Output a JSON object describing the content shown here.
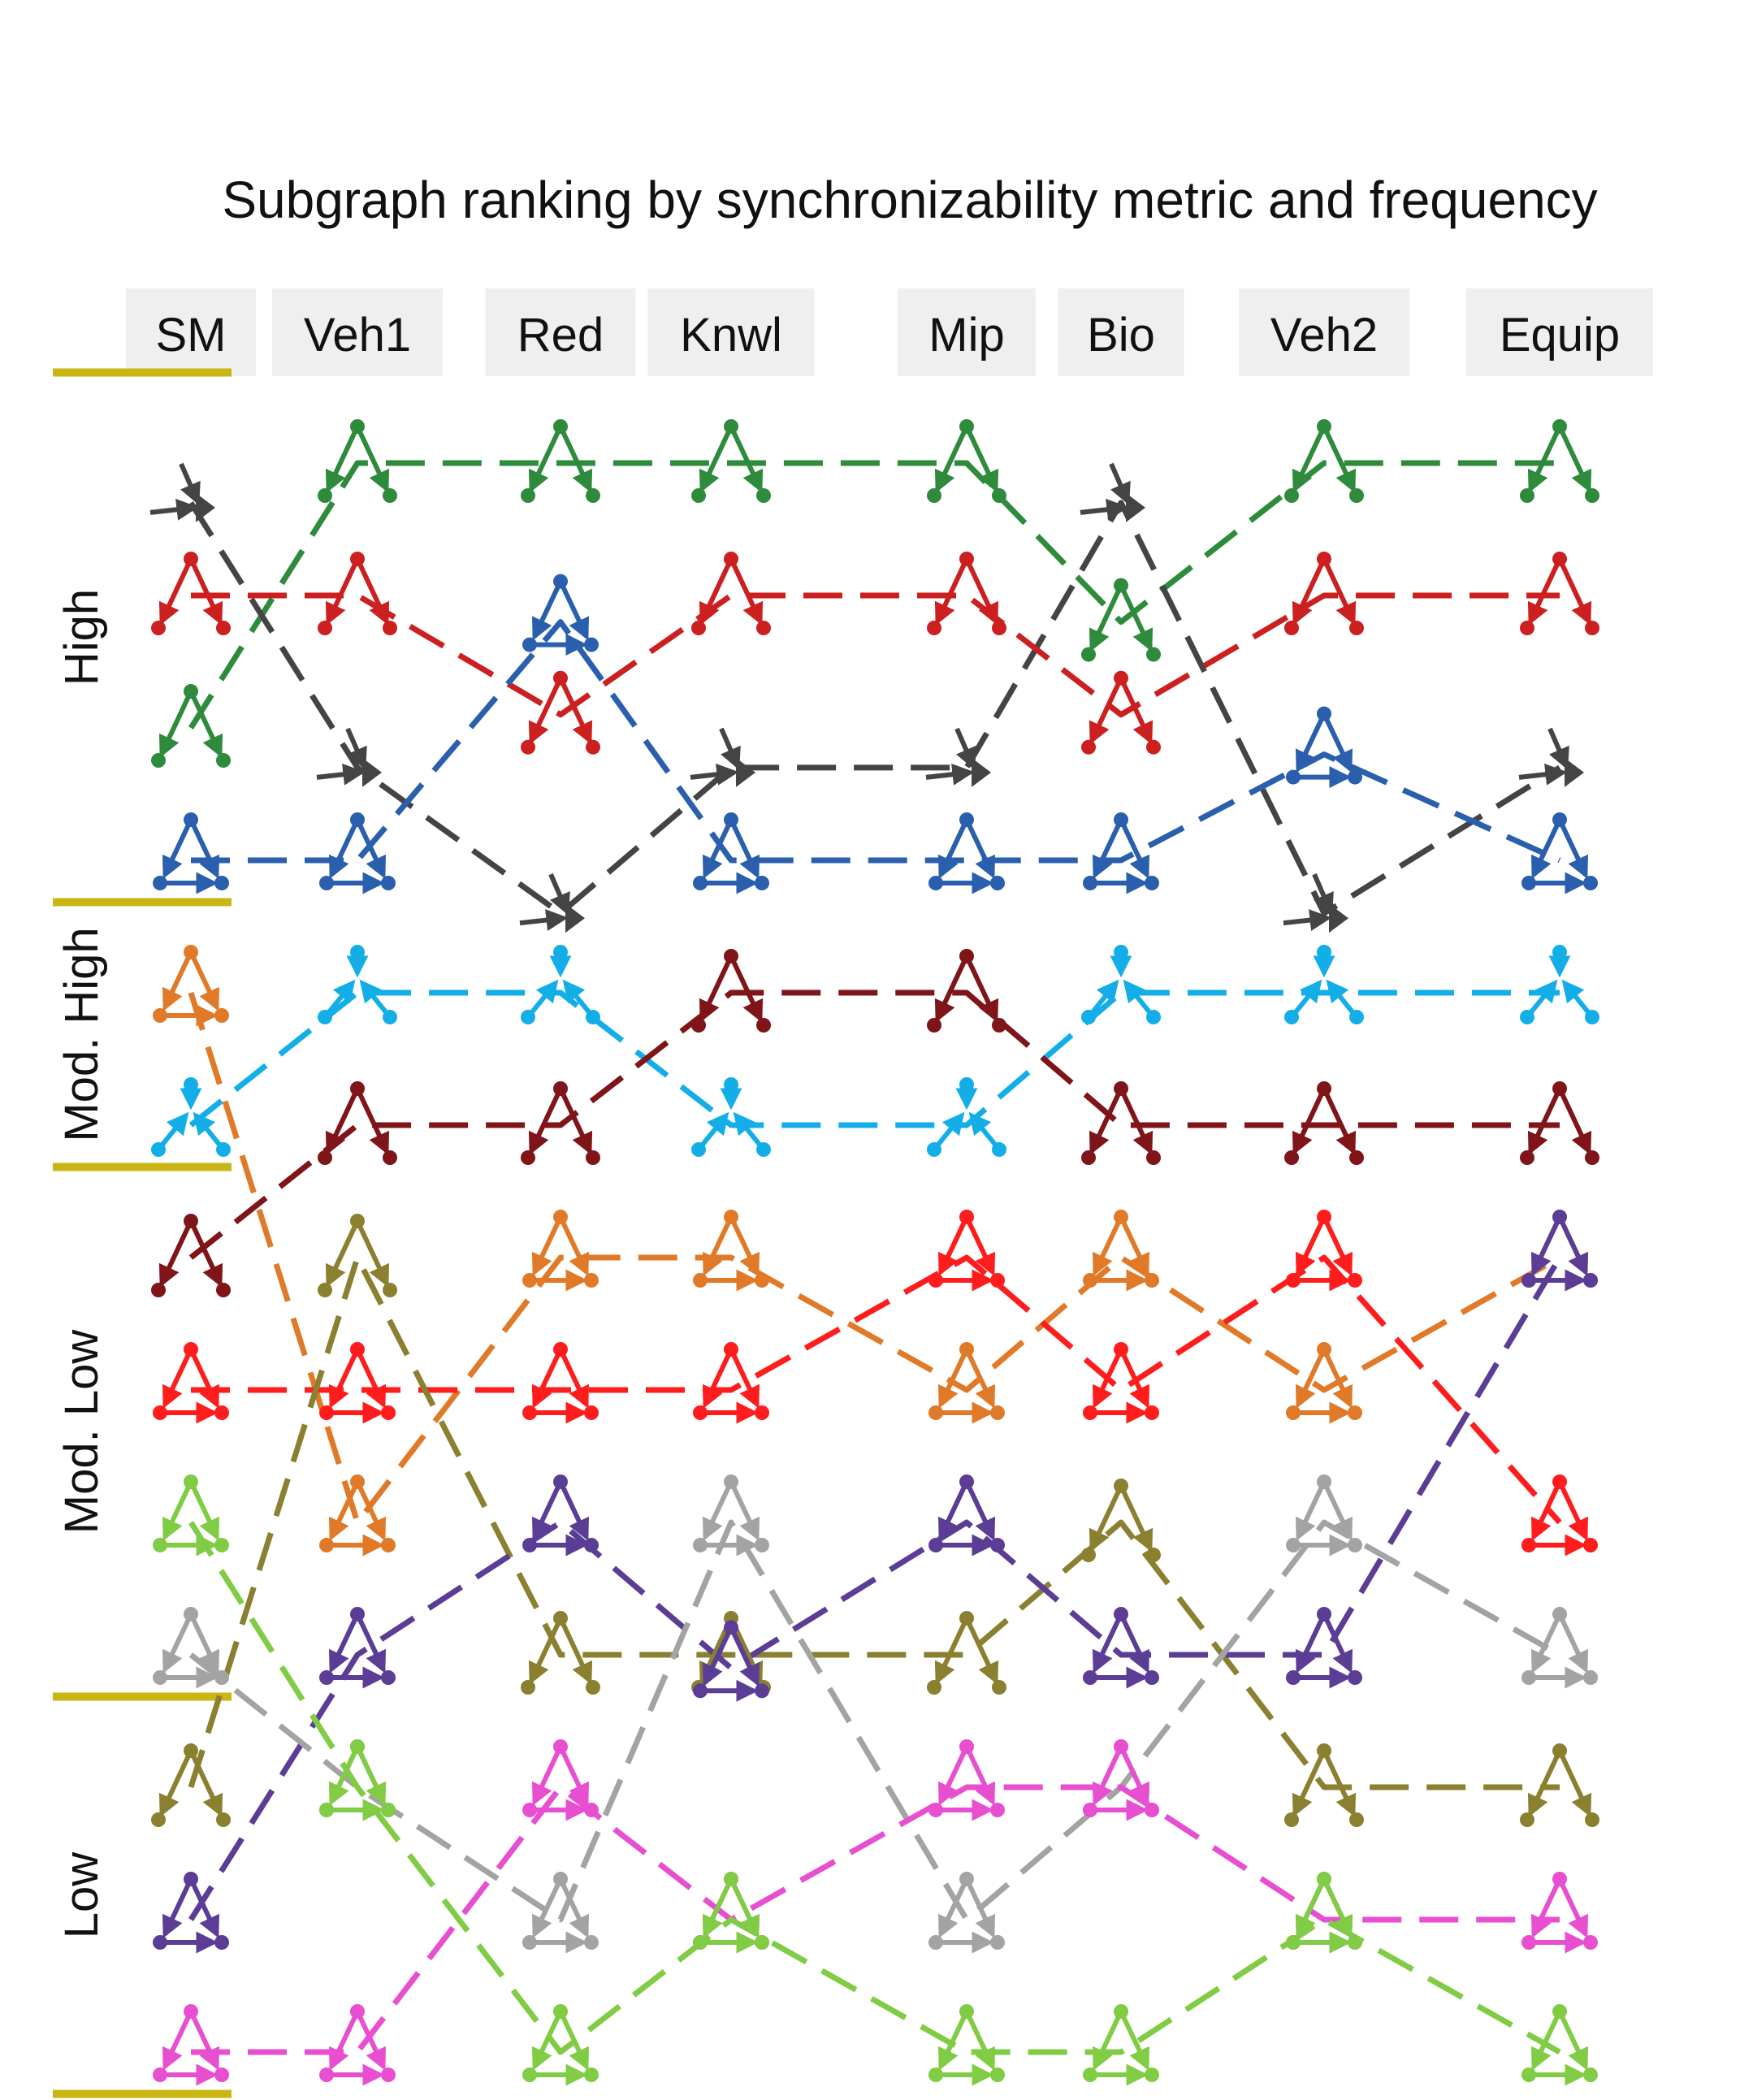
{
  "chart_data": {
    "type": "slope",
    "title": "Subgraph ranking by synchronizability metric and frequency",
    "columns": [
      "SM",
      "Veh1",
      "Red",
      "Knwl",
      "Mip",
      "Bio",
      "Veh2",
      "Equip"
    ],
    "bands": [
      "High",
      "Mod. High",
      "Mod. Low",
      "Low"
    ],
    "band_rank_ranges": {
      "High": [
        1,
        4
      ],
      "Mod. High": [
        5,
        6
      ],
      "Mod. Low": [
        7,
        10
      ],
      "Low": [
        11,
        13
      ]
    },
    "band_bar_color": "#c9b514",
    "subgraphs": [
      {
        "color": "#2e8b3c",
        "motif": "fork",
        "ranks": [
          3,
          1,
          1,
          1,
          1,
          2.2,
          1,
          1
        ]
      },
      {
        "color": "#444444",
        "motif": "arrow",
        "ranks": [
          1.3,
          3.3,
          4.4,
          3.3,
          3.3,
          1.3,
          4.4,
          3.3
        ]
      },
      {
        "color": "#cc1f1f",
        "motif": "fork",
        "ranks": [
          2,
          2,
          2.9,
          2,
          2,
          2.9,
          2,
          2
        ]
      },
      {
        "color": "#2a5fad",
        "motif": "triangle",
        "ranks": [
          4,
          4,
          2.2,
          4,
          4,
          4,
          3.2,
          4
        ]
      },
      {
        "color": "#13aee8",
        "motif": "star",
        "ranks": [
          6,
          5,
          5,
          6,
          6,
          5,
          5,
          5
        ]
      },
      {
        "color": "#7f1518",
        "motif": "fork",
        "ranks": [
          7,
          6,
          6,
          5,
          5,
          6,
          6,
          6
        ]
      },
      {
        "color": "#e07a28",
        "motif": "triangle",
        "ranks": [
          5,
          9,
          7,
          7,
          8,
          7,
          8,
          7
        ]
      },
      {
        "color": "#ff1c1c",
        "motif": "triangle",
        "ranks": [
          8,
          8,
          8,
          8,
          7,
          8,
          7,
          9
        ]
      },
      {
        "color": "#8a8030",
        "motif": "fork",
        "ranks": [
          11,
          7,
          10,
          10,
          10,
          9,
          11,
          11
        ]
      },
      {
        "color": "#5b3d96",
        "motif": "triangle",
        "ranks": [
          12,
          10,
          9,
          10.1,
          9,
          10,
          10,
          7
        ]
      },
      {
        "color": "#a3a3a3",
        "motif": "triangle",
        "ranks": [
          10,
          11,
          12,
          9,
          12,
          11,
          9,
          10
        ]
      },
      {
        "color": "#e84ed0",
        "motif": "triangle",
        "ranks": [
          13,
          13,
          11,
          12,
          11,
          11,
          12,
          12
        ]
      },
      {
        "color": "#80cc44",
        "motif": "triangle",
        "ranks": [
          9,
          11,
          13,
          12,
          13,
          13,
          12,
          13
        ]
      }
    ]
  }
}
